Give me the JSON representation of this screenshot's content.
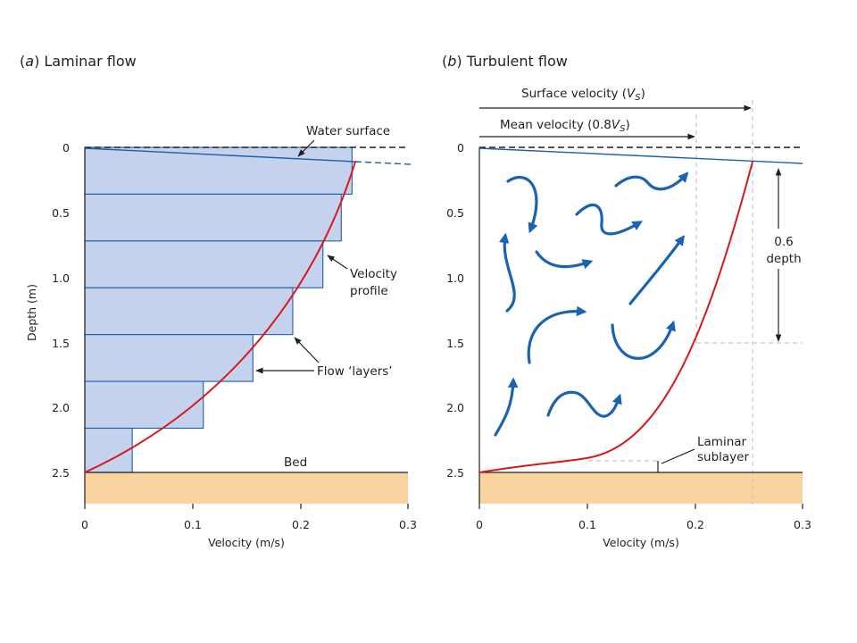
{
  "panel_a": {
    "title_letter": "a",
    "title_text": "Laminar flow",
    "y_ticks": [
      "0",
      "0.5",
      "1.0",
      "1.5",
      "2.0",
      "2.5"
    ],
    "x_ticks": [
      "0",
      "0.1",
      "0.2",
      "0.3"
    ],
    "ylabel": "Depth (m)",
    "xlabel": "Velocity (m/s)",
    "label_water_surface": "Water surface",
    "label_velocity_profile_1": "Velocity",
    "label_velocity_profile_2": "profile",
    "label_flow_layers": "Flow ‘layers’",
    "label_bed": "Bed",
    "layers": [
      {
        "depth_top": 0.0,
        "depth_bottom": 0.36,
        "velocity": 0.248
      },
      {
        "depth_top": 0.36,
        "depth_bottom": 0.72,
        "velocity": 0.238
      },
      {
        "depth_top": 0.72,
        "depth_bottom": 1.08,
        "velocity": 0.221
      },
      {
        "depth_top": 1.08,
        "depth_bottom": 1.44,
        "velocity": 0.193
      },
      {
        "depth_top": 1.44,
        "depth_bottom": 1.8,
        "velocity": 0.156
      },
      {
        "depth_top": 1.8,
        "depth_bottom": 2.16,
        "velocity": 0.11
      },
      {
        "depth_top": 2.16,
        "depth_bottom": 2.5,
        "velocity": 0.044
      }
    ]
  },
  "panel_b": {
    "title_letter": "b",
    "title_text": "Turbulent flow",
    "y_ticks": [
      "0",
      "0.5",
      "1.0",
      "1.5",
      "2.0",
      "2.5"
    ],
    "x_ticks": [
      "0",
      "0.1",
      "0.2",
      "0.3"
    ],
    "xlabel": "Velocity (m/s)",
    "label_surface_velocity_prefix": "Surface velocity (",
    "label_surface_velocity_symbol": "V",
    "label_surface_velocity_sub": "S",
    "label_surface_velocity_suffix": ")",
    "label_mean_velocity_prefix": "Mean velocity (0.8",
    "label_mean_velocity_symbol": "V",
    "label_mean_velocity_sub": "S",
    "label_mean_velocity_suffix": ")",
    "label_depth_fraction_1": "0.6",
    "label_depth_fraction_2": "depth",
    "label_laminar_sublayer_1": "Laminar",
    "label_laminar_sublayer_2": "sublayer",
    "surface_velocity": 0.253,
    "mean_velocity": 0.202,
    "measurement_depth": 1.5
  },
  "colors": {
    "water_blue": "#1b5fa8",
    "layer_fill": "#c4d2ee",
    "bed_fill": "#f9d3a0",
    "profile_red": "#d7191c"
  }
}
